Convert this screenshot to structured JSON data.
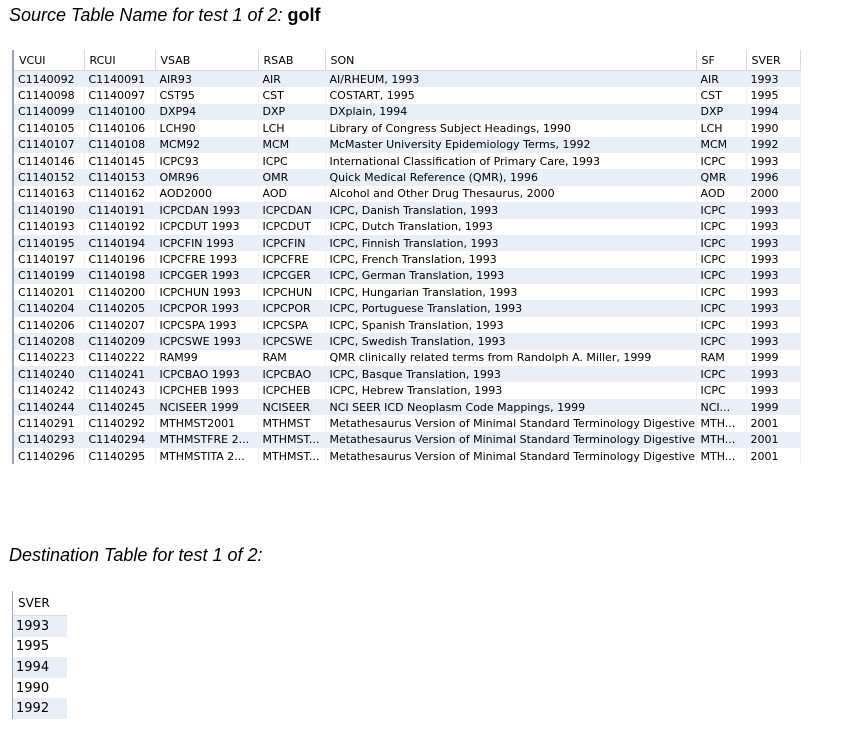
{
  "source_heading": {
    "prefix": "Source Table Name for test 1 of 2",
    "sep": ": ",
    "name": "golf"
  },
  "source_table": {
    "columns": [
      "VCUI",
      "RCUI",
      "VSAB",
      "RSAB",
      "SON",
      "SF",
      "SVER"
    ],
    "rows": [
      [
        "C1140092",
        "C1140091",
        "AIR93",
        "AIR",
        "AI/RHEUM, 1993",
        "AIR",
        "1993"
      ],
      [
        "C1140098",
        "C1140097",
        "CST95",
        "CST",
        "COSTART, 1995",
        "CST",
        "1995"
      ],
      [
        "C1140099",
        "C1140100",
        "DXP94",
        "DXP",
        "DXplain, 1994",
        "DXP",
        "1994"
      ],
      [
        "C1140105",
        "C1140106",
        "LCH90",
        "LCH",
        "Library of Congress Subject Headings, 1990",
        "LCH",
        "1990"
      ],
      [
        "C1140107",
        "C1140108",
        "MCM92",
        "MCM",
        "McMaster University Epidemiology Terms, 1992",
        "MCM",
        "1992"
      ],
      [
        "C1140146",
        "C1140145",
        "ICPC93",
        "ICPC",
        "International Classification of Primary Care, 1993",
        "ICPC",
        "1993"
      ],
      [
        "C1140152",
        "C1140153",
        "OMR96",
        "OMR",
        "Quick Medical Reference (QMR), 1996",
        "QMR",
        "1996"
      ],
      [
        "C1140163",
        "C1140162",
        "AOD2000",
        "AOD",
        "Alcohol and Other Drug Thesaurus, 2000",
        "AOD",
        "2000"
      ],
      [
        "C1140190",
        "C1140191",
        "ICPCDAN 1993",
        "ICPCDAN",
        "ICPC, Danish Translation, 1993",
        "ICPC",
        "1993"
      ],
      [
        "C1140193",
        "C1140192",
        "ICPCDUT 1993",
        "ICPCDUT",
        "ICPC, Dutch Translation, 1993",
        "ICPC",
        "1993"
      ],
      [
        "C1140195",
        "C1140194",
        "ICPCFIN 1993",
        "ICPCFIN",
        "ICPC, Finnish Translation, 1993",
        "ICPC",
        "1993"
      ],
      [
        "C1140197",
        "C1140196",
        "ICPCFRE 1993",
        "ICPCFRE",
        "ICPC, French Translation, 1993",
        "ICPC",
        "1993"
      ],
      [
        "C1140199",
        "C1140198",
        "ICPCGER 1993",
        "ICPCGER",
        "ICPC, German Translation, 1993",
        "ICPC",
        "1993"
      ],
      [
        "C1140201",
        "C1140200",
        "ICPCHUN 1993",
        "ICPCHUN",
        "ICPC, Hungarian Translation, 1993",
        "ICPC",
        "1993"
      ],
      [
        "C1140204",
        "C1140205",
        "ICPCPOR 1993",
        "ICPCPOR",
        "ICPC, Portuguese Translation, 1993",
        "ICPC",
        "1993"
      ],
      [
        "C1140206",
        "C1140207",
        "ICPCSPA 1993",
        "ICPCSPA",
        "ICPC, Spanish Translation, 1993",
        "ICPC",
        "1993"
      ],
      [
        "C1140208",
        "C1140209",
        "ICPCSWE 1993",
        "ICPCSWE",
        "ICPC, Swedish Translation, 1993",
        "ICPC",
        "1993"
      ],
      [
        "C1140223",
        "C1140222",
        "RAM99",
        "RAM",
        "QMR clinically related terms from Randolph A. Miller, 1999",
        "RAM",
        "1999"
      ],
      [
        "C1140240",
        "C1140241",
        "ICPCBAO 1993",
        "ICPCBAO",
        "ICPC, Basque Translation, 1993",
        "ICPC",
        "1993"
      ],
      [
        "C1140242",
        "C1140243",
        "ICPCHEB 1993",
        "ICPCHEB",
        "ICPC, Hebrew Translation, 1993",
        "ICPC",
        "1993"
      ],
      [
        "C1140244",
        "C1140245",
        "NCISEER 1999",
        "NCISEER",
        "NCI SEER ICD Neoplasm Code Mappings, 1999",
        "NCI...",
        "1999"
      ],
      [
        "C1140291",
        "C1140292",
        "MTHMST2001",
        "MTHMST",
        "Metathesaurus Version of Minimal Standard Terminology Digestive ...",
        "MTH...",
        "2001"
      ],
      [
        "C1140293",
        "C1140294",
        "MTHMSTFRE 2...",
        "MTHMST...",
        "Metathesaurus Version of Minimal Standard Terminology Digestive ...",
        "MTH...",
        "2001"
      ],
      [
        "C1140296",
        "C1140295",
        "MTHMSTITA 2...",
        "MTHMST...",
        "Metathesaurus Version of Minimal Standard Terminology Digestive ...",
        "MTH...",
        "2001"
      ]
    ]
  },
  "destination_heading": {
    "text": "Destination Table for test 1 of 2:"
  },
  "destination_table": {
    "columns": [
      "SVER"
    ],
    "rows": [
      [
        "1993"
      ],
      [
        "1995"
      ],
      [
        "1994"
      ],
      [
        "1990"
      ],
      [
        "1992"
      ]
    ]
  }
}
